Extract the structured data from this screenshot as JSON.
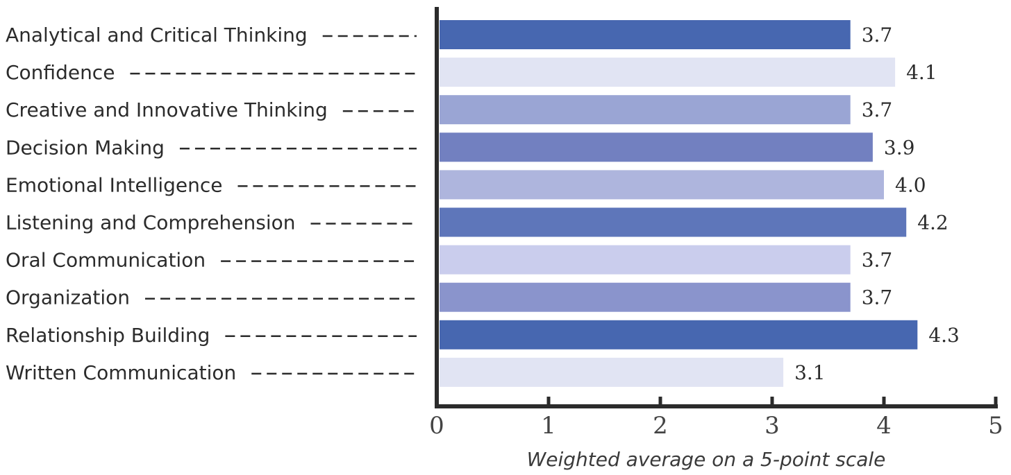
{
  "chart_data": {
    "type": "bar",
    "orientation": "horizontal",
    "title": "",
    "xlabel": "Weighted average on a 5-point scale",
    "ylabel": "",
    "xlim": [
      0,
      5
    ],
    "xticks": [
      "0",
      "1",
      "2",
      "3",
      "4",
      "5"
    ],
    "grid": false,
    "legend": "none",
    "categories": [
      "Analytical and Critical Thinking",
      "Confidence",
      "Creative and Innovative Thinking",
      "Decision Making",
      "Emotional Intelligence",
      "Listening and Comprehension",
      "Oral Communication",
      "Organization",
      "Relationship Building",
      "Written Communication"
    ],
    "values": [
      3.7,
      4.1,
      3.7,
      3.9,
      4.0,
      4.2,
      3.7,
      3.7,
      4.3,
      3.1
    ],
    "value_labels": [
      "3.7",
      "4.1",
      "3.7",
      "3.9",
      "4.0",
      "4.2",
      "3.7",
      "3.7",
      "4.3",
      "3.1"
    ],
    "colors": [
      "#4767b0",
      "#e1e4f3",
      "#9aa5d4",
      "#7280c0",
      "#aeb5dd",
      "#5e76ba",
      "#cacded",
      "#8a94cc",
      "#4767b0",
      "#e1e4f3"
    ]
  }
}
